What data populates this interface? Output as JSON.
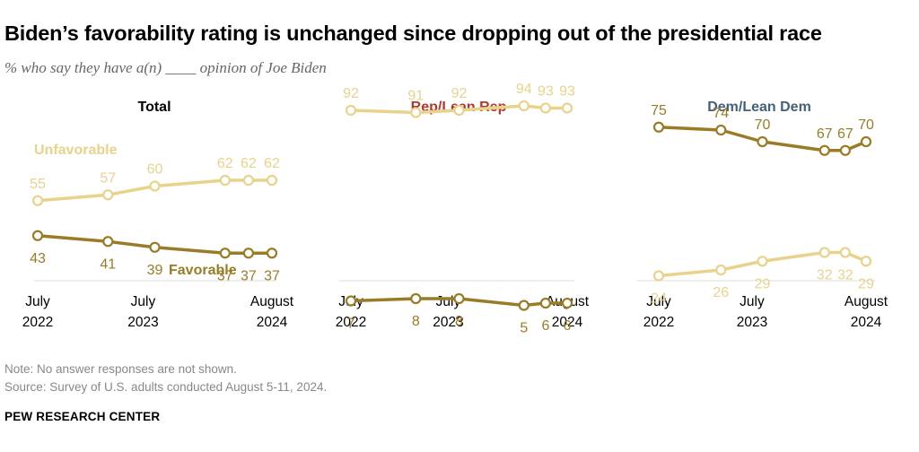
{
  "title": "Biden’s favorability rating is unchanged since dropping out of the presidential race",
  "subtitle": "% who say they have a(n) ____ opinion of Joe Biden",
  "note": "Note: No answer responses are not shown.",
  "source": "Source: Survey of U.S. adults conducted August 5-11, 2024.",
  "brand": "PEW RESEARCH CENTER",
  "colors": {
    "unfavorable": "#E9D38C",
    "favorable": "#9A7C27",
    "rep": "#B5372A",
    "dem": "#44607A",
    "axis": "#dcdcdc"
  },
  "chart_data": [
    {
      "type": "line",
      "title": "Total",
      "title_color": "#000000",
      "x": [
        0,
        3,
        5,
        8,
        9,
        10
      ],
      "x_ticks": [
        {
          "pos": 0,
          "line1": "July",
          "line2": "2022"
        },
        {
          "pos": 4.5,
          "line1": "July",
          "line2": "2023"
        },
        {
          "pos": 10,
          "line1": "August",
          "line2": "2024"
        }
      ],
      "ylim": [
        30,
        70
      ],
      "series": [
        {
          "name": "Unfavorable",
          "values": [
            55,
            57,
            60,
            62,
            62,
            62
          ],
          "label_text": "Unfavorable"
        },
        {
          "name": "Favorable",
          "values": [
            43,
            41,
            39,
            37,
            37,
            37
          ],
          "label_text": "Favorable"
        }
      ]
    },
    {
      "type": "line",
      "title": "Rep/Lean Rep",
      "title_color": "#B5372A",
      "x": [
        0,
        3,
        5,
        8,
        9,
        10
      ],
      "x_ticks": [
        {
          "pos": 0,
          "line1": "July",
          "line2": "2022"
        },
        {
          "pos": 4.5,
          "line1": "July",
          "line2": "2023"
        },
        {
          "pos": 10,
          "line1": "August",
          "line2": "2024"
        }
      ],
      "ylim": [
        0,
        100
      ],
      "series": [
        {
          "name": "Unfavorable",
          "values": [
            92,
            91,
            92,
            94,
            93,
            93
          ]
        },
        {
          "name": "Favorable",
          "values": [
            7,
            8,
            8,
            5,
            6,
            6
          ]
        }
      ]
    },
    {
      "type": "line",
      "title": "Dem/Lean Dem",
      "title_color": "#44607A",
      "x": [
        0,
        3,
        5,
        8,
        9,
        10
      ],
      "x_ticks": [
        {
          "pos": 0,
          "line1": "July",
          "line2": "2022"
        },
        {
          "pos": 4.5,
          "line1": "July",
          "line2": "2023"
        },
        {
          "pos": 10,
          "line1": "August",
          "line2": "2024"
        }
      ],
      "ylim": [
        10,
        90
      ],
      "series": [
        {
          "name": "Unfavorable",
          "values": [
            24,
            26,
            29,
            32,
            32,
            29
          ]
        },
        {
          "name": "Favorable",
          "values": [
            75,
            74,
            70,
            67,
            67,
            70
          ]
        }
      ]
    }
  ]
}
